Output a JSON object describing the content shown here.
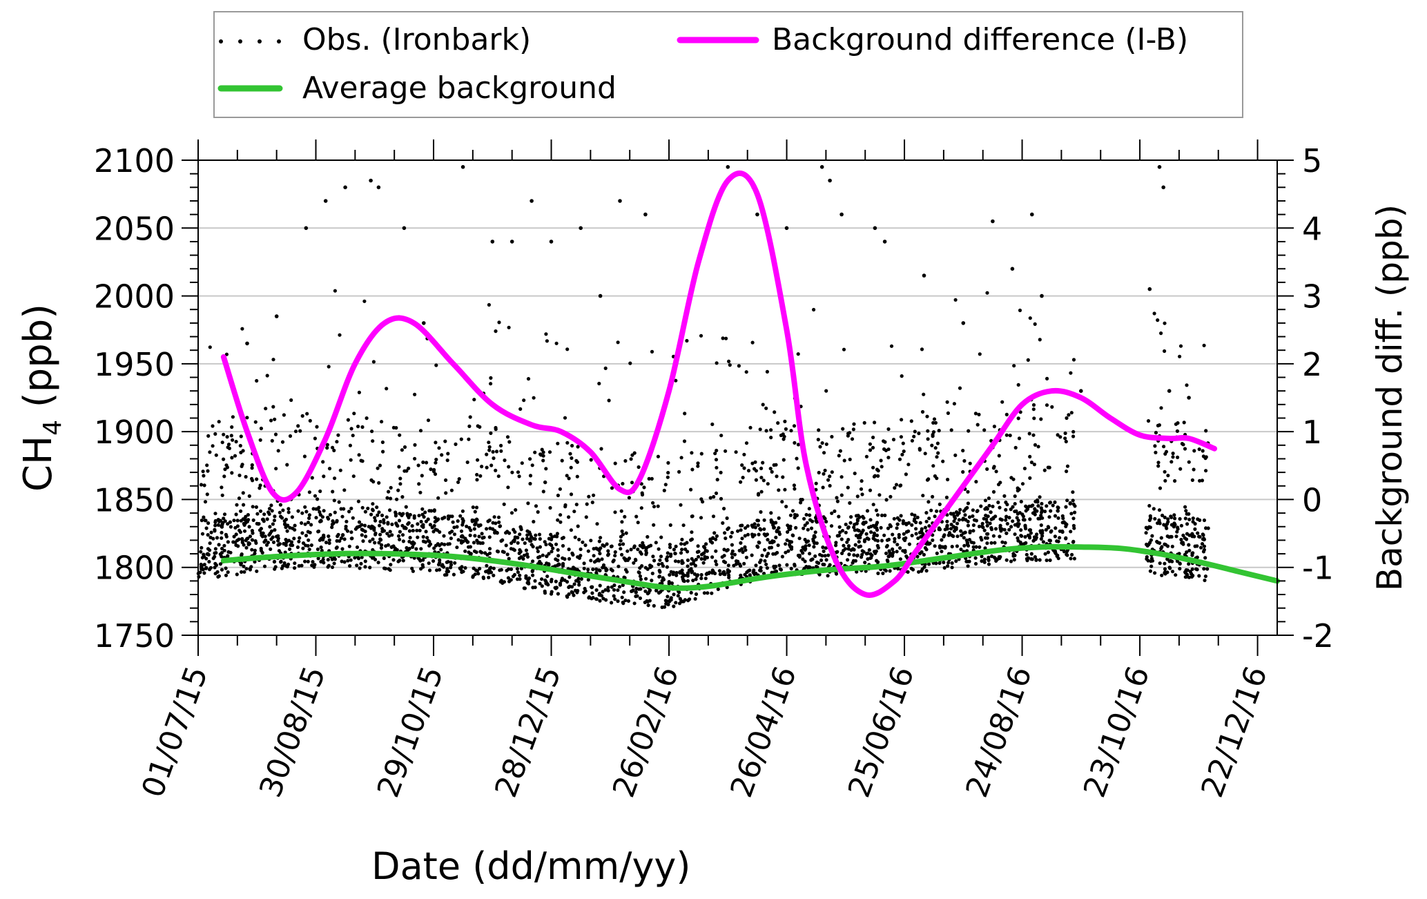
{
  "chart_data": {
    "type": "scatter",
    "xlabel": "Date (dd/mm/yy)",
    "ylabel_main": "CH",
    "ylabel_sub": "4",
    "ylabel_unit": " (ppb)",
    "y2label": "Background diff. (ppb)",
    "x_tick_labels": [
      "01/07/15",
      "30/08/15",
      "29/10/15",
      "28/12/15",
      "26/02/16",
      "26/04/16",
      "25/06/16",
      "24/08/16",
      "23/10/16",
      "22/12/16"
    ],
    "x_tick_days": [
      0,
      60,
      120,
      180,
      240,
      300,
      360,
      420,
      480,
      540
    ],
    "xlim_days": [
      0,
      550
    ],
    "ylim": [
      1750,
      2100
    ],
    "y_ticks": [
      1750,
      1800,
      1850,
      1900,
      1950,
      2000,
      2050,
      2100
    ],
    "y2lim": [
      -2,
      5
    ],
    "y2_ticks": [
      -2,
      -1,
      0,
      1,
      2,
      3,
      4,
      5
    ],
    "grid": "horizontal",
    "legend": {
      "position": "top",
      "items": [
        {
          "label": "Obs. (Ironbark)",
          "marker": "dots"
        },
        {
          "label": "Background difference (I-B)",
          "marker": "line"
        },
        {
          "label": "Average background",
          "marker": "line"
        }
      ]
    },
    "colors": {
      "obs": "#000000",
      "background": "#33c433",
      "difference": "#ff00ff",
      "grid": "#c8c8c8"
    },
    "series": [
      {
        "name": "Average background",
        "axis": "left",
        "x_days": [
          13,
          40,
          70,
          100,
          130,
          160,
          190,
          220,
          240,
          260,
          290,
          320,
          350,
          380,
          410,
          430,
          450,
          470,
          490,
          510,
          530,
          550
        ],
        "values": [
          1805,
          1808,
          1810,
          1810,
          1808,
          1803,
          1796,
          1789,
          1785,
          1786,
          1793,
          1798,
          1801,
          1807,
          1813,
          1815,
          1815,
          1814,
          1810,
          1804,
          1797,
          1790
        ]
      },
      {
        "name": "Background difference (I-B)",
        "axis": "right",
        "x_days": [
          13,
          25,
          38,
          50,
          65,
          80,
          95,
          110,
          130,
          150,
          170,
          185,
          200,
          215,
          225,
          240,
          255,
          270,
          285,
          300,
          310,
          325,
          340,
          355,
          365,
          375,
          390,
          405,
          420,
          435,
          450,
          465,
          480,
          495,
          505,
          518
        ],
        "values": [
          2.1,
          1.0,
          0.1,
          0.1,
          0.9,
          2.0,
          2.6,
          2.6,
          2.0,
          1.4,
          1.1,
          1.0,
          0.7,
          0.15,
          0.3,
          1.6,
          3.5,
          4.7,
          4.5,
          2.5,
          0.5,
          -0.9,
          -1.4,
          -1.2,
          -0.8,
          -0.4,
          0.2,
          0.8,
          1.4,
          1.6,
          1.5,
          1.2,
          0.95,
          0.9,
          0.9,
          0.75
        ]
      },
      {
        "name": "Obs. (Ironbark)",
        "axis": "left",
        "x_range_days": [
          0,
          515
        ],
        "gaps_days": [
          [
            447,
            483
          ]
        ],
        "baseline_ppb": [
          [
            0,
            1815
          ],
          [
            30,
            1822
          ],
          [
            70,
            1825
          ],
          [
            110,
            1822
          ],
          [
            150,
            1815
          ],
          [
            180,
            1805
          ],
          [
            210,
            1798
          ],
          [
            240,
            1795
          ],
          [
            270,
            1810
          ],
          [
            300,
            1820
          ],
          [
            330,
            1818
          ],
          [
            360,
            1820
          ],
          [
            390,
            1825
          ],
          [
            420,
            1830
          ],
          [
            447,
            1830
          ],
          [
            483,
            1820
          ],
          [
            515,
            1815
          ]
        ],
        "spike_samples": [
          [
            25,
            1965
          ],
          [
            40,
            1985
          ],
          [
            55,
            2050
          ],
          [
            65,
            2070
          ],
          [
            75,
            2080
          ],
          [
            88,
            2085
          ],
          [
            92,
            2080
          ],
          [
            105,
            2050
          ],
          [
            115,
            1980
          ],
          [
            135,
            2095
          ],
          [
            150,
            2040
          ],
          [
            160,
            2040
          ],
          [
            170,
            2070
          ],
          [
            180,
            2040
          ],
          [
            195,
            2050
          ],
          [
            205,
            2000
          ],
          [
            215,
            2070
          ],
          [
            228,
            2060
          ],
          [
            240,
            1930
          ],
          [
            270,
            2095
          ],
          [
            283,
            2080
          ],
          [
            285,
            2060
          ],
          [
            300,
            2050
          ],
          [
            318,
            2095
          ],
          [
            322,
            2085
          ],
          [
            328,
            2060
          ],
          [
            345,
            2050
          ],
          [
            350,
            2040
          ],
          [
            370,
            2015
          ],
          [
            390,
            1980
          ],
          [
            405,
            2055
          ],
          [
            415,
            2020
          ],
          [
            425,
            2060
          ],
          [
            430,
            2000
          ],
          [
            450,
            1930
          ],
          [
            485,
            2005
          ],
          [
            490,
            2095
          ],
          [
            492,
            2080
          ],
          [
            495,
            1930
          ],
          [
            505,
            1925
          ]
        ]
      }
    ]
  }
}
